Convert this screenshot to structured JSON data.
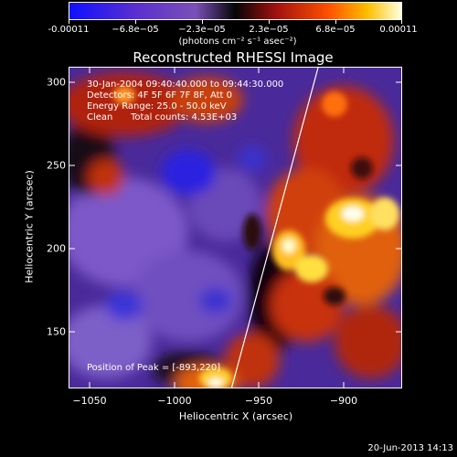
{
  "colorbar": {
    "labels": [
      "-0.00011",
      "−6.8e−05",
      "−2.3e−05",
      "2.3e−05",
      "6.8e−05",
      "0.00011"
    ],
    "units": "(photons cm⁻² s⁻¹ asec⁻²)"
  },
  "title": "Reconstructed RHESSI Image",
  "annotations": {
    "time": "30-Jan-2004 09:40:40.000 to 09:44:30.000",
    "detectors": "Detectors: 4F 5F 6F 7F 8F, Att 0",
    "energy": "Energy Range: 25.0 - 50.0 keV",
    "method": "Clean",
    "counts": "Total counts: 4.53E+03",
    "peak": "Position of Peak = [-893,220]"
  },
  "axes": {
    "xlabel": "Heliocentric X (arcsec)",
    "ylabel": "Heliocentric Y (arcsec)",
    "xticks": [
      "−1050",
      "−1000",
      "−950",
      "−900"
    ],
    "yticks": [
      "300",
      "250",
      "200",
      "150"
    ]
  },
  "footer": {
    "date": "20-Jun-2013 14:13"
  },
  "colors": {
    "background": "#000000",
    "text": "#ffffff"
  }
}
